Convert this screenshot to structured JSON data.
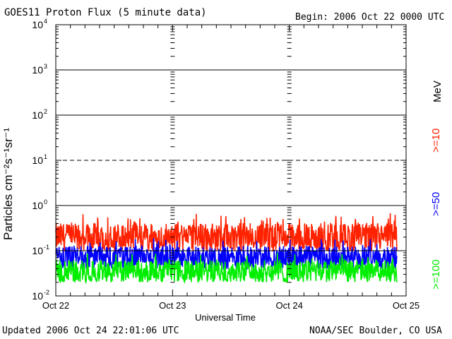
{
  "header": {
    "title": "GOES11 Proton Flux (5 minute data)",
    "begin": "Begin: 2006 Oct 22 0000 UTC"
  },
  "footer": {
    "updated": "Updated 2006 Oct 24 22:01:06 UTC",
    "credit": "NOAA/SEC Boulder, CO USA"
  },
  "colors": {
    "ge10": "#ff2200",
    "ge50": "#0000ff",
    "ge100": "#00ee00",
    "axes": "#000000"
  },
  "chart_data": {
    "type": "line",
    "title": "GOES11 Proton Flux (5 minute data)",
    "xlabel": "Universal Time",
    "ylabel": "Particles cm⁻²s⁻¹sr⁻¹",
    "yscale": "log",
    "ylim": [
      0.01,
      10000
    ],
    "y_major_ticks": [
      {
        "value": 0.01,
        "base": "10",
        "exp": "-2"
      },
      {
        "value": 0.1,
        "base": "10",
        "exp": "-1"
      },
      {
        "value": 1,
        "base": "10",
        "exp": "0"
      },
      {
        "value": 10,
        "base": "10",
        "exp": "1"
      },
      {
        "value": 100,
        "base": "10",
        "exp": "2"
      },
      {
        "value": 1000,
        "base": "10",
        "exp": "3"
      },
      {
        "value": 10000,
        "base": "10",
        "exp": "4"
      }
    ],
    "x_ticks": [
      "Oct 22",
      "Oct 23",
      "Oct 24",
      "Oct 25"
    ],
    "xlim_days": [
      0,
      3
    ],
    "reference_lines": [
      {
        "value": 1,
        "style": "solid"
      },
      {
        "value": 10,
        "style": "dashed"
      },
      {
        "value": 100,
        "style": "solid"
      },
      {
        "value": 1000,
        "style": "solid"
      },
      {
        "value": 0.1,
        "style": "solid"
      }
    ],
    "legend_unit": "MeV",
    "series": [
      {
        "name": ">=10",
        "color": "#ff2200",
        "baseline": 0.2,
        "min": 0.1,
        "max": 0.7
      },
      {
        "name": ">=50",
        "color": "#0000ff",
        "baseline": 0.07,
        "min": 0.04,
        "max": 0.2
      },
      {
        "name": ">=100",
        "color": "#00ee00",
        "baseline": 0.035,
        "min": 0.02,
        "max": 0.09
      }
    ],
    "data_end_day": 2.92
  }
}
